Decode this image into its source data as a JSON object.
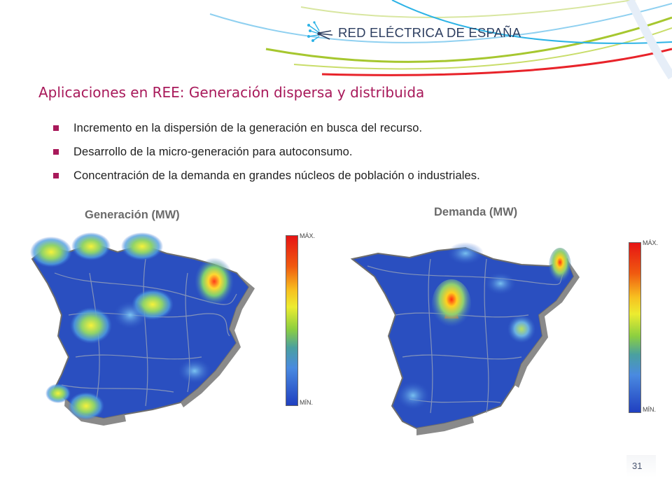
{
  "header": {
    "logo_text": "RED ELÉCTRICA DE ESPAÑA",
    "logo_icon": "ree-network-logo-icon",
    "colors": {
      "red": "#e8232a",
      "lime": "#a6c72f",
      "cyan": "#2db3e6",
      "navy": "#2d3e60"
    }
  },
  "slide": {
    "title": "Aplicaciones en REE: Generación dispersa y distribuida",
    "title_color": "#a8195a",
    "bullets": [
      "Incremento en la dispersión de la generación en busca del recurso.",
      "Desarrollo de la micro-generación para autoconsumo.",
      "Concentración de la demanda en grandes núcleos de población o industriales."
    ]
  },
  "maps": {
    "generation": {
      "label": "Generación (MW)",
      "scale_max": "MÁX.",
      "scale_min": "MÍN."
    },
    "demand": {
      "label": "Demanda (MW)",
      "scale_max": "MÁX.",
      "scale_min": "MÍN."
    }
  },
  "footer": {
    "page_number": "31"
  }
}
